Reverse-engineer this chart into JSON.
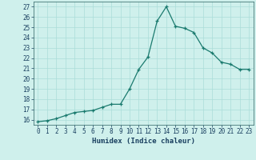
{
  "x": [
    0,
    1,
    2,
    3,
    4,
    5,
    6,
    7,
    8,
    9,
    10,
    11,
    12,
    13,
    14,
    15,
    16,
    17,
    18,
    19,
    20,
    21,
    22,
    23
  ],
  "y": [
    15.8,
    15.9,
    16.1,
    16.4,
    16.7,
    16.8,
    16.9,
    17.2,
    17.5,
    17.5,
    19.0,
    20.9,
    22.1,
    25.6,
    27.0,
    25.1,
    24.9,
    24.5,
    23.0,
    22.5,
    21.6,
    21.4,
    20.9,
    20.9
  ],
  "xlabel": "Humidex (Indice chaleur)",
  "ylabel": "",
  "xlim": [
    -0.5,
    23.5
  ],
  "ylim": [
    15.5,
    27.5
  ],
  "yticks": [
    16,
    17,
    18,
    19,
    20,
    21,
    22,
    23,
    24,
    25,
    26,
    27
  ],
  "xticks": [
    0,
    1,
    2,
    3,
    4,
    5,
    6,
    7,
    8,
    9,
    10,
    11,
    12,
    13,
    14,
    15,
    16,
    17,
    18,
    19,
    20,
    21,
    22,
    23
  ],
  "line_color": "#1a7a6e",
  "marker": "+",
  "bg_color": "#cff0ec",
  "grid_color": "#aaddd8",
  "axis_color": "#2a6060",
  "label_color": "#1a4060",
  "tick_fontsize": 5.5,
  "xlabel_fontsize": 6.5
}
